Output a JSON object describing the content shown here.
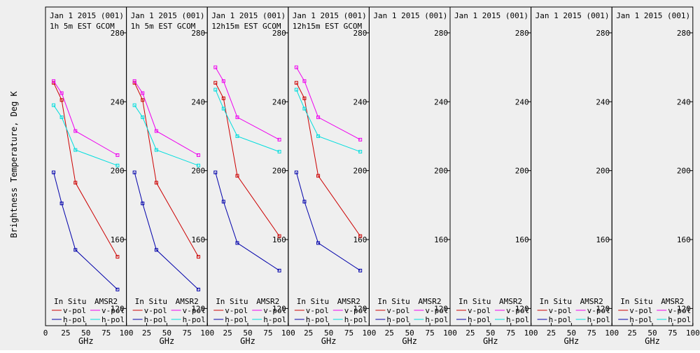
{
  "ylabel": "Brightness Temperature, Deg K",
  "xlabel": "GHz",
  "colors": {
    "background": "#efefef",
    "insitu_v": "#cc0000",
    "insitu_h": "#0000aa",
    "amsr2_v": "#ee00ee",
    "amsr2_h": "#00dddd",
    "axis": "#000000"
  },
  "legend": {
    "group_insitu": "In Situ",
    "group_amsr2": "AMSR2",
    "vpol": "v-pol",
    "hpol": "h-pol"
  },
  "chart_data": {
    "type": "line",
    "xlim": [
      0,
      100
    ],
    "ylim": [
      110,
      295
    ],
    "xticks": [
      0,
      25,
      50,
      75,
      100
    ],
    "yticks": [
      120,
      160,
      200,
      240,
      280
    ],
    "grid": false,
    "legend_placement": "bottom",
    "panels": [
      {
        "title1": "Jan 1 2015 (001)",
        "title2": "1h 5m EST GCOM",
        "series": [
          {
            "name": "In Situ v-pol",
            "color_key": "insitu_v",
            "x": [
              10,
              20,
              37,
              89
            ],
            "y": [
              251,
              241,
              193,
              150
            ]
          },
          {
            "name": "In Situ h-pol",
            "color_key": "insitu_h",
            "x": [
              10,
              20,
              37,
              89
            ],
            "y": [
              199,
              181,
              154,
              131
            ]
          },
          {
            "name": "AMSR2 v-pol",
            "color_key": "amsr2_v",
            "x": [
              10,
              20,
              37,
              89
            ],
            "y": [
              252,
              245,
              223,
              209
            ]
          },
          {
            "name": "AMSR2 h-pol",
            "color_key": "amsr2_h",
            "x": [
              10,
              20,
              37,
              89
            ],
            "y": [
              238,
              231,
              212,
              203
            ]
          }
        ]
      },
      {
        "title1": "Jan 1 2015 (001)",
        "title2": "1h 5m EST GCOM",
        "series": [
          {
            "name": "In Situ v-pol",
            "color_key": "insitu_v",
            "x": [
              10,
              20,
              37,
              89
            ],
            "y": [
              251,
              241,
              193,
              150
            ]
          },
          {
            "name": "In Situ h-pol",
            "color_key": "insitu_h",
            "x": [
              10,
              20,
              37,
              89
            ],
            "y": [
              199,
              181,
              154,
              131
            ]
          },
          {
            "name": "AMSR2 v-pol",
            "color_key": "amsr2_v",
            "x": [
              10,
              20,
              37,
              89
            ],
            "y": [
              252,
              245,
              223,
              209
            ]
          },
          {
            "name": "AMSR2 h-pol",
            "color_key": "amsr2_h",
            "x": [
              10,
              20,
              37,
              89
            ],
            "y": [
              238,
              231,
              212,
              203
            ]
          }
        ]
      },
      {
        "title1": "Jan 1 2015 (001)",
        "title2": "12h15m EST GCOM",
        "series": [
          {
            "name": "In Situ v-pol",
            "color_key": "insitu_v",
            "x": [
              10,
              20,
              37,
              89
            ],
            "y": [
              251,
              242,
              197,
              162
            ]
          },
          {
            "name": "In Situ h-pol",
            "color_key": "insitu_h",
            "x": [
              10,
              20,
              37,
              89
            ],
            "y": [
              199,
              182,
              158,
              142
            ]
          },
          {
            "name": "AMSR2 v-pol",
            "color_key": "amsr2_v",
            "x": [
              10,
              20,
              37,
              89
            ],
            "y": [
              260,
              252,
              231,
              218
            ]
          },
          {
            "name": "AMSR2 h-pol",
            "color_key": "amsr2_h",
            "x": [
              10,
              20,
              37,
              89
            ],
            "y": [
              247,
              236,
              220,
              211
            ]
          }
        ]
      },
      {
        "title1": "Jan 1 2015 (001)",
        "title2": "12h15m EST GCOM",
        "series": [
          {
            "name": "In Situ v-pol",
            "color_key": "insitu_v",
            "x": [
              10,
              20,
              37,
              89
            ],
            "y": [
              251,
              242,
              197,
              162
            ]
          },
          {
            "name": "In Situ h-pol",
            "color_key": "insitu_h",
            "x": [
              10,
              20,
              37,
              89
            ],
            "y": [
              199,
              182,
              158,
              142
            ]
          },
          {
            "name": "AMSR2 v-pol",
            "color_key": "amsr2_v",
            "x": [
              10,
              20,
              37,
              89
            ],
            "y": [
              260,
              252,
              231,
              218
            ]
          },
          {
            "name": "AMSR2 h-pol",
            "color_key": "amsr2_h",
            "x": [
              10,
              20,
              37,
              89
            ],
            "y": [
              247,
              236,
              220,
              211
            ]
          }
        ]
      },
      {
        "title1": "Jan 1 2015 (001)",
        "title2": "",
        "series": []
      },
      {
        "title1": "Jan 1 2015 (001)",
        "title2": "",
        "series": []
      },
      {
        "title1": "Jan 1 2015 (001)",
        "title2": "",
        "series": []
      },
      {
        "title1": "Jan 1 2015 (001)",
        "title2": "",
        "series": []
      }
    ]
  }
}
